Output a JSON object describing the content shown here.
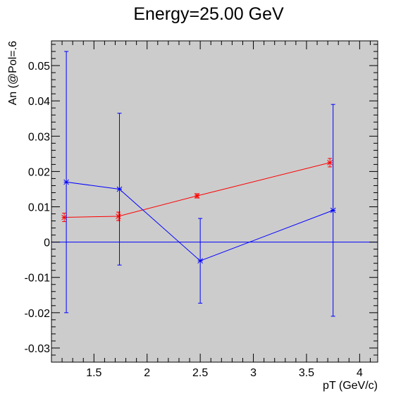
{
  "chart_data": {
    "type": "scatter",
    "title": "Energy=25.00 GeV",
    "xlabel": "pT (GeV/c)",
    "ylabel": "An (@Pol=.6",
    "xlim": [
      1.1,
      4.17
    ],
    "ylim": [
      -0.034,
      0.057
    ],
    "grid": false,
    "x_ticks": [
      1.5,
      2,
      2.5,
      3,
      3.5,
      4
    ],
    "x_tick_labels": [
      "1.5",
      "2",
      "2.5",
      "3",
      "3.5",
      "4"
    ],
    "y_ticks": [
      -0.03,
      -0.02,
      -0.01,
      0,
      0.01,
      0.02,
      0.03,
      0.04,
      0.05
    ],
    "y_tick_labels": [
      "-0.03",
      "-0.02",
      "-0.01",
      "0",
      "0.01",
      "0.02",
      "0.03",
      "0.04",
      "0.05"
    ],
    "reference_line": 0,
    "series": [
      {
        "color": "#ff0000",
        "x": [
          1.22,
          1.73,
          2.47,
          3.72
        ],
        "y": [
          0.007,
          0.0073,
          0.0131,
          0.0225
        ],
        "err": [
          0.0012,
          0.0012,
          0.0006,
          0.0012
        ]
      },
      {
        "color": "#0000ff",
        "x": [
          1.24,
          1.74,
          2.5,
          3.75
        ],
        "y": [
          0.017,
          0.015,
          -0.0053,
          0.009
        ],
        "err": [
          0.037,
          0.0215,
          0.012,
          0.03
        ]
      }
    ]
  },
  "colors": {
    "plot_bg": "#cccccc",
    "zero_line": "#0000ff"
  }
}
